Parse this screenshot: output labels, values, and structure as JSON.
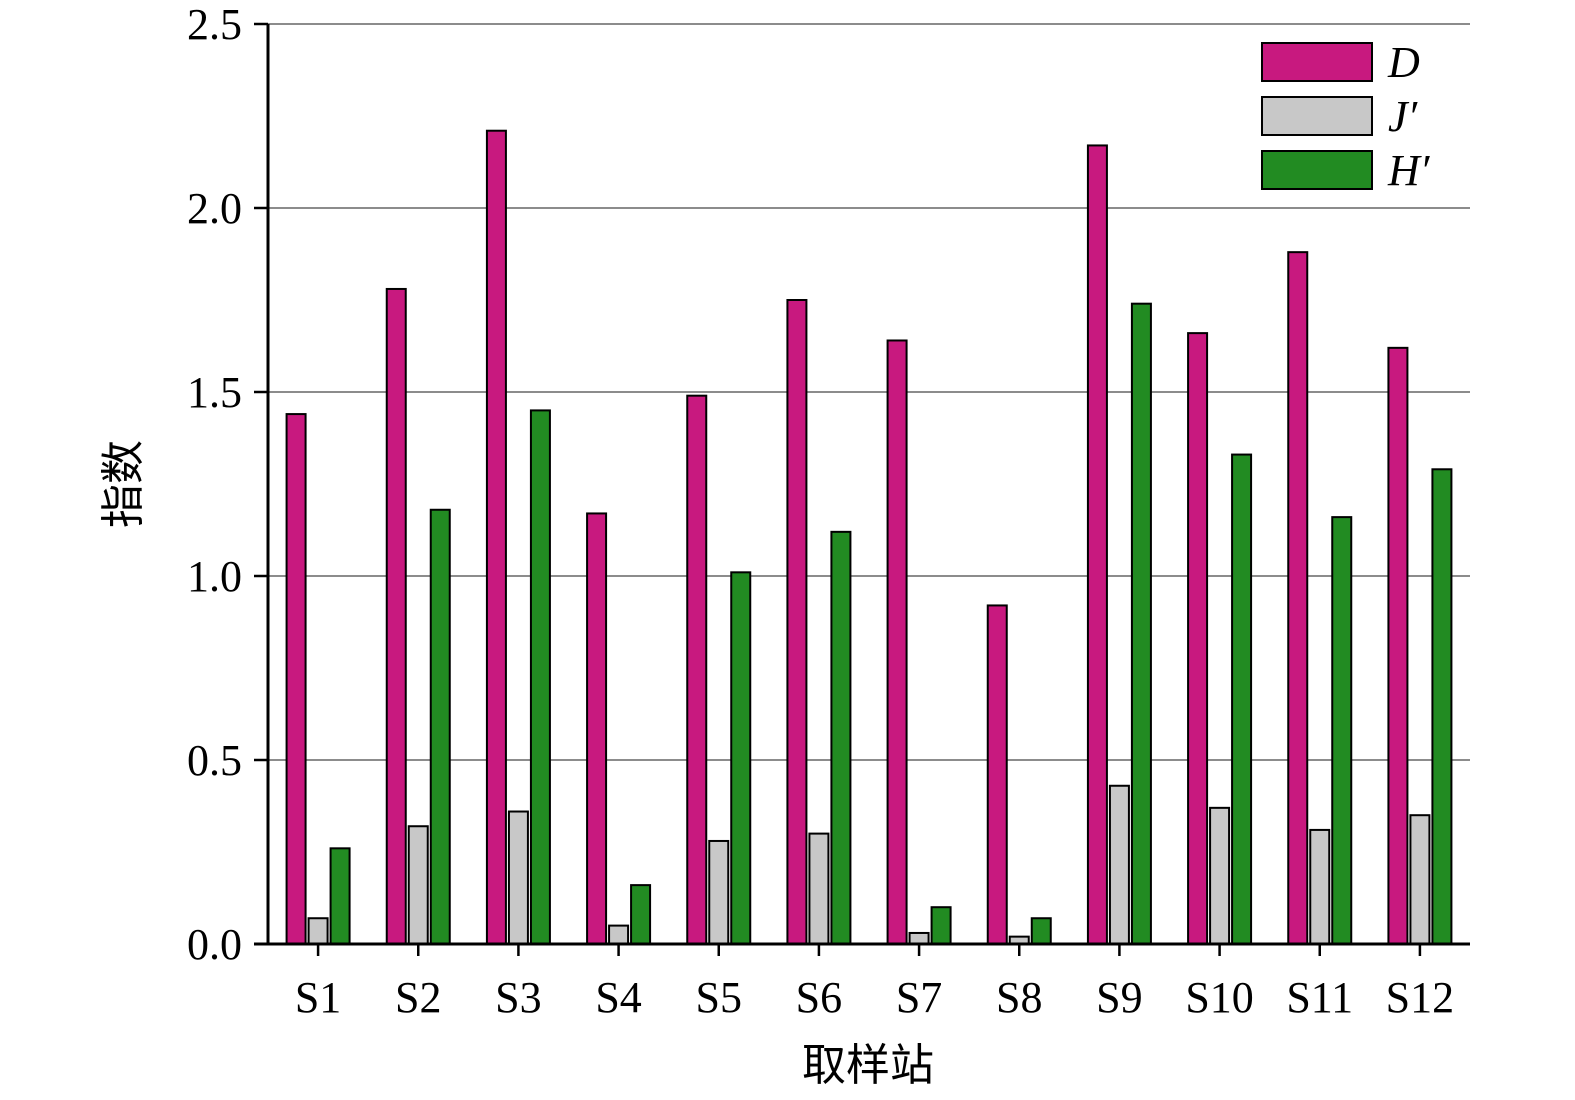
{
  "chart_data": {
    "type": "bar",
    "title": "",
    "xlabel": "取样站",
    "ylabel": "指数",
    "ylim": [
      0,
      2.5
    ],
    "yticks": [
      "0.0",
      "0.5",
      "1.0",
      "1.5",
      "2.0",
      "2.5"
    ],
    "grid": true,
    "legend_position": "top-right",
    "categories": [
      "S1",
      "S2",
      "S3",
      "S4",
      "S5",
      "S6",
      "S7",
      "S8",
      "S9",
      "S10",
      "S11",
      "S12"
    ],
    "series": [
      {
        "name": "D",
        "color": "#c8197f",
        "values": [
          1.44,
          1.78,
          2.21,
          1.17,
          1.49,
          1.75,
          1.64,
          0.92,
          2.17,
          1.66,
          1.88,
          1.62
        ]
      },
      {
        "name": "J′",
        "color": "#c8c8c8",
        "values": [
          0.07,
          0.32,
          0.36,
          0.05,
          0.28,
          0.3,
          0.03,
          0.02,
          0.43,
          0.37,
          0.31,
          0.35
        ]
      },
      {
        "name": "H′",
        "color": "#228b22",
        "values": [
          0.26,
          1.18,
          1.45,
          0.16,
          1.01,
          1.12,
          0.1,
          0.07,
          1.74,
          1.33,
          1.16,
          1.29
        ]
      }
    ]
  }
}
